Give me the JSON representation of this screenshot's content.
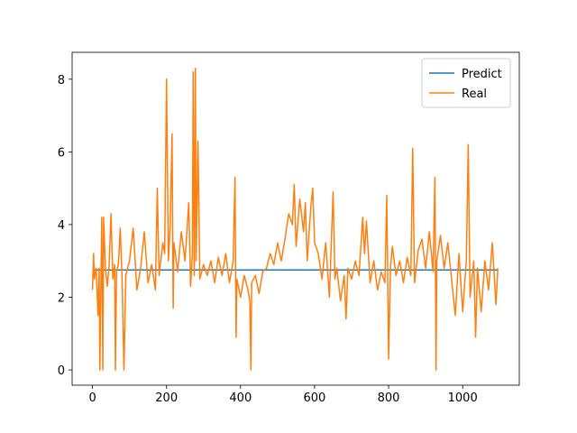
{
  "chart_data": {
    "type": "line",
    "xlim": [
      -55,
      1153
    ],
    "ylim": [
      -0.42,
      8.74
    ],
    "xticks": [
      0,
      200,
      400,
      600,
      800,
      1000
    ],
    "yticks": [
      0,
      2,
      4,
      6,
      8
    ],
    "legend": "upper right",
    "grid": false,
    "series": [
      {
        "name": "Predict",
        "color": "#1f77b4",
        "x": [
          0,
          1095
        ],
        "values": [
          2.75,
          2.75
        ]
      },
      {
        "name": "Real",
        "color": "#ff7f0e",
        "x": [
          0,
          3,
          5,
          10,
          15,
          18,
          20,
          25,
          28,
          30,
          35,
          40,
          45,
          50,
          55,
          60,
          62,
          65,
          70,
          75,
          80,
          85,
          90,
          100,
          110,
          120,
          130,
          140,
          150,
          160,
          170,
          175,
          180,
          190,
          195,
          200,
          205,
          210,
          215,
          218,
          220,
          230,
          240,
          250,
          260,
          265,
          270,
          272,
          275,
          278,
          280,
          285,
          290,
          300,
          310,
          320,
          330,
          340,
          350,
          360,
          370,
          380,
          385,
          388,
          390,
          400,
          410,
          420,
          425,
          428,
          430,
          440,
          450,
          460,
          470,
          480,
          490,
          500,
          510,
          520,
          530,
          540,
          545,
          550,
          560,
          570,
          575,
          580,
          590,
          595,
          600,
          610,
          620,
          630,
          640,
          650,
          655,
          660,
          670,
          680,
          685,
          690,
          700,
          710,
          720,
          730,
          735,
          740,
          750,
          760,
          770,
          780,
          790,
          795,
          800,
          805,
          810,
          820,
          830,
          840,
          850,
          860,
          865,
          870,
          880,
          890,
          900,
          910,
          920,
          925,
          928,
          930,
          940,
          950,
          960,
          970,
          980,
          990,
          1000,
          1010,
          1015,
          1020,
          1030,
          1035,
          1040,
          1050,
          1060,
          1070,
          1080,
          1090,
          1095
        ],
        "values": [
          2.2,
          3.2,
          2.5,
          2.8,
          1.5,
          2.8,
          0,
          4.2,
          0,
          4.2,
          2.8,
          2.3,
          2.9,
          4.3,
          2.5,
          2.9,
          0,
          2.7,
          2.9,
          3.9,
          2.5,
          0,
          2.6,
          3.0,
          3.9,
          2.2,
          2.8,
          3.8,
          2.4,
          2.9,
          2.2,
          5.0,
          2.6,
          3.5,
          3.2,
          8.0,
          3.0,
          4.0,
          6.5,
          1.7,
          3.5,
          2.7,
          3.8,
          3.0,
          4.6,
          2.3,
          3.2,
          8.2,
          2.6,
          8.3,
          3.0,
          6.3,
          2.5,
          2.9,
          2.6,
          3.0,
          2.4,
          3.1,
          2.6,
          3.2,
          2.4,
          3.0,
          5.3,
          0.9,
          2.5,
          2.0,
          2.6,
          2.2,
          1.9,
          0,
          2.4,
          2.6,
          2.1,
          2.7,
          2.8,
          3.2,
          2.9,
          3.5,
          3.0,
          3.6,
          4.3,
          4.0,
          5.1,
          3.4,
          4.7,
          3.8,
          4.6,
          3.0,
          4.5,
          5.0,
          3.5,
          3.2,
          2.5,
          3.5,
          2.0,
          4.9,
          2.5,
          2.8,
          1.9,
          2.6,
          1.4,
          2.8,
          2.5,
          3.0,
          2.6,
          4.2,
          3.2,
          4.1,
          2.4,
          3.0,
          2.2,
          2.7,
          2.4,
          4.8,
          0.3,
          2.8,
          3.4,
          2.6,
          3.0,
          2.4,
          3.1,
          2.6,
          6.1,
          2.4,
          3.3,
          3.6,
          2.8,
          3.8,
          2.7,
          5.3,
          0,
          3.0,
          3.7,
          2.8,
          3.5,
          2.5,
          1.5,
          3.2,
          1.6,
          3.0,
          6.2,
          2.0,
          3.0,
          0.9,
          2.8,
          1.6,
          3.0,
          2.2,
          3.5,
          1.8,
          2.8
        ]
      }
    ]
  }
}
